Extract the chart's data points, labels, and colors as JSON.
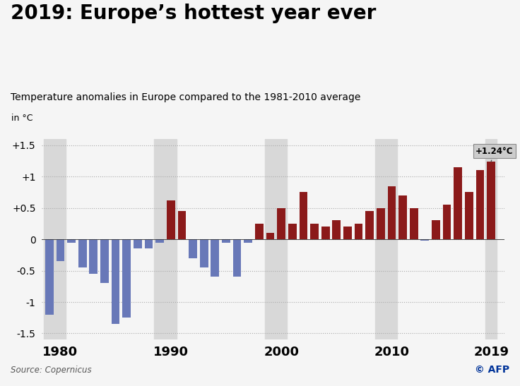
{
  "title": "2019: Europe’s hottest year ever",
  "subtitle": "Temperature anomalies in Europe compared to the 1981-2010 average",
  "ylabel": "in °C",
  "source": "Source: Copernicus",
  "annotation": "+1.24°C",
  "years": [
    1979,
    1980,
    1981,
    1982,
    1983,
    1984,
    1985,
    1986,
    1987,
    1988,
    1989,
    1990,
    1991,
    1992,
    1993,
    1994,
    1995,
    1996,
    1997,
    1998,
    1999,
    2000,
    2001,
    2002,
    2003,
    2004,
    2005,
    2006,
    2007,
    2008,
    2009,
    2010,
    2011,
    2012,
    2013,
    2014,
    2015,
    2016,
    2017,
    2018,
    2019
  ],
  "values": [
    -1.2,
    -0.35,
    -0.05,
    -0.45,
    -0.55,
    -0.7,
    -1.35,
    -1.25,
    -0.15,
    -0.15,
    -0.05,
    0.62,
    0.45,
    -0.3,
    -0.45,
    -0.6,
    -0.05,
    -0.6,
    -0.05,
    0.25,
    0.1,
    0.5,
    0.25,
    0.75,
    0.25,
    0.2,
    0.3,
    0.2,
    0.25,
    0.45,
    0.5,
    0.85,
    0.7,
    0.5,
    -0.02,
    0.3,
    0.55,
    1.15,
    0.75,
    1.1,
    1.24
  ],
  "negative_color": "#6878b8",
  "positive_color": "#8b1a1a",
  "background_color": "#f5f5f5",
  "grid_color": "#aaaaaa",
  "shade_color": "#d8d8d8",
  "ylim": [
    -1.6,
    1.6
  ],
  "yticks": [
    -1.5,
    -1.0,
    -0.5,
    0.0,
    0.5,
    1.0,
    1.5
  ],
  "ytick_labels": [
    "-1.5",
    "-1",
    "-0.5",
    "0",
    "+0.5",
    "+1",
    "+1.5"
  ],
  "shade_ranges": [
    [
      1979,
      1981
    ],
    [
      1989,
      1991
    ],
    [
      1999,
      2001
    ],
    [
      2009,
      2011
    ],
    [
      2019,
      2020
    ]
  ],
  "xticks": [
    1980,
    1990,
    2000,
    2010,
    2019
  ]
}
